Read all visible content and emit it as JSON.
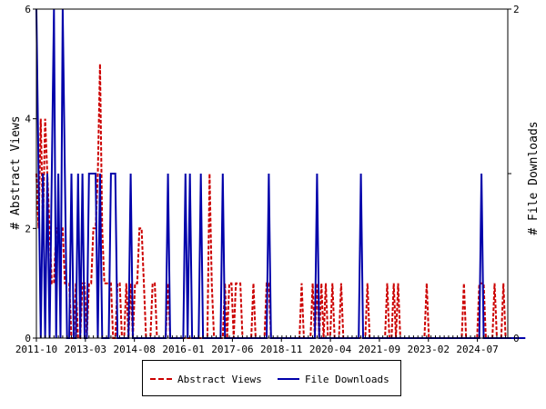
{
  "chart_data": {
    "type": "line",
    "title": "",
    "xlabel": "",
    "ylabel_left": "# Abstract Views",
    "ylabel_right": "# File Downloads",
    "x_tick_labels": [
      "2011-10",
      "2013-03",
      "2014-08",
      "2016-01",
      "2017-06",
      "2018-11",
      "2020-04",
      "2021-09",
      "2023-02",
      "2024-07"
    ],
    "y_left": {
      "range": [
        0,
        6
      ],
      "ticks": [
        "0",
        "2",
        "4",
        "6"
      ]
    },
    "y_right": {
      "range": [
        0,
        2
      ],
      "ticks": [
        "0",
        "1",
        "2"
      ]
    },
    "legend_position": "bottom",
    "grid": false,
    "series": [
      {
        "name": "Abstract Views",
        "axis": "left",
        "color": "#cc0000",
        "style": "dashed",
        "values": [
          3,
          2,
          4,
          2,
          4,
          3,
          2,
          1,
          1,
          2,
          2,
          2,
          2,
          1,
          1,
          1,
          0,
          0,
          1,
          0,
          0,
          1,
          1,
          0,
          1,
          1,
          2,
          2,
          3,
          5,
          2,
          1,
          1,
          1,
          1,
          0,
          0,
          1,
          1,
          0,
          0,
          1,
          0,
          1,
          0,
          1,
          1,
          2,
          2,
          1,
          0,
          0,
          0,
          1,
          1,
          0,
          0,
          0,
          0,
          0,
          1,
          0,
          0,
          0,
          0,
          0,
          0,
          0,
          0,
          0,
          0,
          0,
          0,
          0,
          0,
          0,
          0,
          0,
          0,
          3,
          1,
          0,
          0,
          0,
          0,
          0,
          1,
          0,
          1,
          1,
          0,
          1,
          1,
          1,
          0,
          0,
          0,
          0,
          0,
          1,
          0,
          0,
          0,
          0,
          0,
          1,
          1,
          0,
          0,
          0,
          0,
          0,
          0,
          0,
          0,
          0,
          0,
          0,
          0,
          0,
          0,
          1,
          0,
          0,
          0,
          0,
          1,
          0,
          1,
          0,
          1,
          0,
          1,
          0,
          0,
          1,
          0,
          0,
          0,
          1,
          0,
          0,
          0,
          0,
          0,
          0,
          0,
          0,
          0,
          0,
          0,
          1,
          0,
          0,
          0,
          0,
          0,
          0,
          0,
          0,
          1,
          0,
          0,
          1,
          0,
          1,
          0,
          0,
          0,
          0,
          0,
          0,
          0,
          0,
          0,
          0,
          0,
          0,
          1,
          0,
          0,
          0,
          0,
          0,
          0,
          0,
          0,
          0,
          0,
          0,
          0,
          0,
          0,
          0,
          0,
          1,
          0,
          0,
          0,
          0,
          0,
          0,
          1,
          1,
          1,
          0,
          0,
          0,
          0,
          1,
          0,
          0,
          0,
          1,
          0,
          0
        ]
      },
      {
        "name": "File Downloads",
        "axis": "right",
        "color": "#0000aa",
        "style": "solid",
        "values": [
          2,
          1,
          0,
          1,
          0,
          1,
          0,
          1,
          2,
          0,
          1,
          0,
          2,
          1,
          0,
          0,
          1,
          0,
          0,
          1,
          0,
          1,
          0,
          0,
          1,
          1,
          1,
          1,
          0,
          1,
          0,
          0,
          0,
          0,
          1,
          1,
          1,
          0,
          0,
          0,
          0,
          0,
          0,
          1,
          0,
          0,
          0,
          0,
          0,
          0,
          0,
          0,
          0,
          0,
          0,
          0,
          0,
          0,
          0,
          0,
          1,
          0,
          0,
          0,
          0,
          0,
          0,
          0,
          1,
          0,
          1,
          0,
          0,
          0,
          0,
          1,
          0,
          0,
          0,
          0,
          0,
          0,
          0,
          0,
          0,
          1,
          0,
          0,
          0,
          0,
          0,
          0,
          0,
          0,
          0,
          0,
          0,
          0,
          0,
          0,
          0,
          0,
          0,
          0,
          0,
          0,
          1,
          0,
          0,
          0,
          0,
          0,
          0,
          0,
          0,
          0,
          0,
          0,
          0,
          0,
          0,
          0,
          0,
          0,
          0,
          0,
          0,
          0,
          1,
          0,
          0,
          0,
          0,
          0,
          0,
          0,
          0,
          0,
          0,
          0,
          0,
          0,
          0,
          0,
          0,
          0,
          0,
          0,
          1,
          0,
          0,
          0,
          0,
          0,
          0,
          0,
          0,
          0,
          0,
          0,
          0,
          0,
          0,
          0,
          0,
          0,
          0,
          0,
          0,
          0,
          0,
          0,
          0,
          0,
          0,
          0,
          0,
          0,
          0,
          0,
          0,
          0,
          0,
          0,
          0,
          0,
          0,
          0,
          0,
          0,
          0,
          0,
          0,
          0,
          0,
          0,
          0,
          0,
          0,
          0,
          0,
          0,
          0,
          1,
          0,
          0,
          0,
          0,
          0,
          0,
          0,
          0,
          0,
          0,
          0,
          0,
          0,
          0,
          0,
          0,
          0,
          0,
          0,
          0
        ]
      }
    ]
  }
}
